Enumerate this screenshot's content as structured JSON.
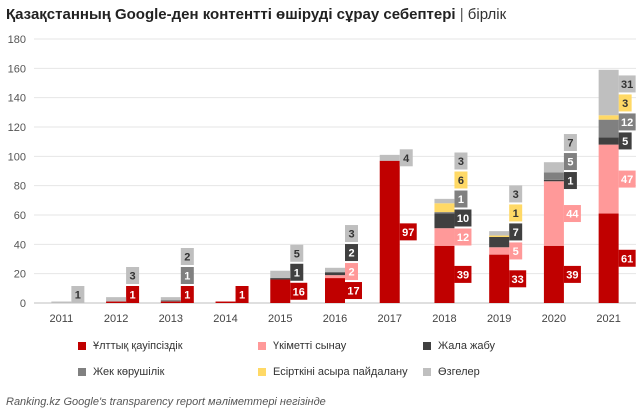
{
  "title": {
    "main": "Қазақстанның Google-ден контентті өшіруді сұрау себептері",
    "separator": "|",
    "unit": "бірлік"
  },
  "source": "Ranking.kz Google's transparency report мәліметтері негізінде",
  "chart_data": {
    "type": "bar",
    "stacked": true,
    "categories": [
      "2011",
      "2012",
      "2013",
      "2014",
      "2015",
      "2016",
      "2017",
      "2018",
      "2019",
      "2020",
      "2021"
    ],
    "ylim": [
      0,
      180
    ],
    "yticks": [
      0,
      20,
      40,
      60,
      80,
      100,
      120,
      140,
      160,
      180
    ],
    "grid": true,
    "legend_position": "bottom",
    "series": [
      {
        "name": "Ұлттық қауіпсіздік",
        "color": "#c00000",
        "labelText": "#ffffff",
        "values": [
          0,
          1,
          1,
          1,
          16,
          17,
          97,
          39,
          33,
          39,
          61
        ]
      },
      {
        "name": "Үкіметті сынау",
        "color": "#ff9999",
        "labelText": "#ffffff",
        "values": [
          0,
          0,
          0,
          0,
          0,
          2,
          0,
          12,
          5,
          44,
          47
        ]
      },
      {
        "name": "Жала жабу",
        "color": "#404040",
        "labelText": "#ffffff",
        "values": [
          0,
          0,
          0,
          0,
          1,
          2,
          0,
          10,
          7,
          1,
          5
        ]
      },
      {
        "name": "Жек көрушілік",
        "color": "#808080",
        "labelText": "#ffffff",
        "values": [
          0,
          0,
          1,
          0,
          0,
          0,
          0,
          1,
          0,
          5,
          12
        ]
      },
      {
        "name": "Есірткіні асыра пайдалану",
        "color": "#ffd966",
        "labelText": "#333333",
        "values": [
          0,
          0,
          0,
          0,
          0,
          0,
          0,
          6,
          1,
          0,
          3
        ]
      },
      {
        "name": "Өзгелер",
        "color": "#bfbfbf",
        "labelText": "#333333",
        "values": [
          1,
          3,
          2,
          0,
          5,
          3,
          4,
          3,
          3,
          7,
          31
        ]
      }
    ]
  }
}
